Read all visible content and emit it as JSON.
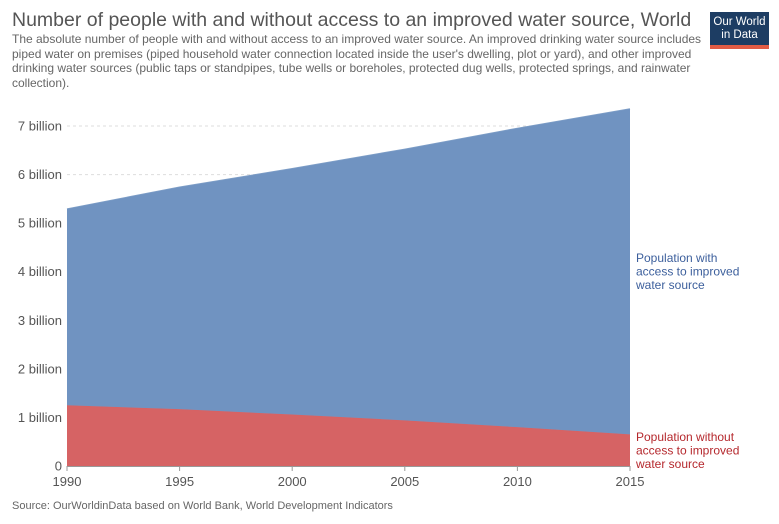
{
  "header": {
    "title": "Number of people with and without access to an improved water source, World",
    "subtitle": "The absolute number of people with and without access to an improved water source. An improved drinking water source includes piped water on premises (piped household water connection located inside the user's dwelling, plot or yard), and other improved drinking water sources (public taps or standpipes, tube wells or boreholes, protected dug wells, protected springs, and rainwater collection).",
    "logo_line1": "Our World",
    "logo_line2": "in Data"
  },
  "footer": {
    "source": "Source: OurWorldinData based on World Bank, World Development Indicators"
  },
  "chart_data": {
    "type": "area",
    "stacked": true,
    "title": "Number of people with and without access to an improved water source, World",
    "x": [
      1990,
      1995,
      2000,
      2005,
      2010,
      2015
    ],
    "xlim": [
      1990,
      2015
    ],
    "ylim": [
      0,
      7000000000
    ],
    "x_ticks": [
      "1990",
      "1995",
      "2000",
      "2005",
      "2010",
      "2015"
    ],
    "y_ticks": [
      {
        "value": 0,
        "label": "0"
      },
      {
        "value": 1000000000,
        "label": "1 billion"
      },
      {
        "value": 2000000000,
        "label": "2 billion"
      },
      {
        "value": 3000000000,
        "label": "3 billion"
      },
      {
        "value": 4000000000,
        "label": "4 billion"
      },
      {
        "value": 5000000000,
        "label": "5 billion"
      },
      {
        "value": 6000000000,
        "label": "6 billion"
      },
      {
        "value": 7000000000,
        "label": "7 billion"
      }
    ],
    "grid": true,
    "series": [
      {
        "name": "Population without access to improved water source",
        "color": "#d66364",
        "label_color": "#b5282d",
        "values": [
          1250000000,
          1170000000,
          1060000000,
          940000000,
          800000000,
          650000000
        ]
      },
      {
        "name": "Population with access to improved water source",
        "color": "#7093c1",
        "label_color": "#3c5f9c",
        "values": [
          4040000000,
          4570000000,
          5060000000,
          5580000000,
          6150000000,
          6700000000
        ]
      }
    ]
  }
}
